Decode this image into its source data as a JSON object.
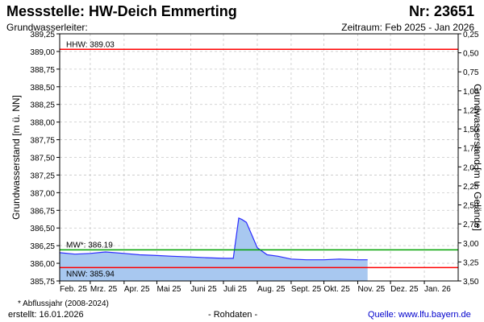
{
  "header": {
    "title": "Messstelle: HW-Deich Emmerting",
    "nr": "Nr: 23651",
    "aquifer": "Grundwasserleiter:",
    "period": "Zeitraum: Feb 2025 - Jan 2026"
  },
  "footer": {
    "footnote": "* Abflussjahr (2008-2024)",
    "created": "erstellt:  16.01.2026",
    "raw": "- Rohdaten -",
    "source": "Quelle: www.lfu.bayern.de"
  },
  "chart_data": {
    "type": "area",
    "ylabel": "Grundwasserstand [m ü. NN]",
    "ylabel_right": "Grundwasserstand [m u. Gelände]",
    "ylim": [
      385.75,
      389.25
    ],
    "ylim_right": [
      3.5,
      0.25
    ],
    "y_ticks": [
      "389,25",
      "389,00",
      "388,75",
      "388,50",
      "388,25",
      "388,00",
      "387,75",
      "387,50",
      "387,25",
      "387,00",
      "386,75",
      "386,50",
      "386,25",
      "386,00",
      "385,75"
    ],
    "y_right_ticks": [
      "0,25",
      "0,50",
      "0,75",
      "1,00",
      "1,25",
      "1,50",
      "1,75",
      "2,00",
      "2,25",
      "2,50",
      "2,75",
      "3,00",
      "3,25",
      "3,50"
    ],
    "x_ticks": [
      "Feb. 25",
      "Mrz. 25",
      "Apr. 25",
      "Mai 25",
      "Juni 25",
      "Juli 25",
      "Aug. 25",
      "Sept. 25",
      "Okt. 25",
      "Nov. 25",
      "Dez. 25",
      "Jan. 26"
    ],
    "grid": true,
    "colors": {
      "series": "#2b2bff",
      "fill": "#a8c8f0",
      "hhw": "#ff0000",
      "mw": "#00a000",
      "nnw": "#ff0000",
      "grid": "#c8c8c8"
    },
    "reference_lines": [
      {
        "label": "HHW: 389.03",
        "value": 389.03,
        "color": "#ff0000"
      },
      {
        "label": "MW*: 386.19",
        "value": 386.19,
        "color": "#00a000"
      },
      {
        "label": "NNW: 385.94",
        "value": 385.94,
        "color": "#ff0000"
      }
    ],
    "series": [
      {
        "x": [
          "2025-02-01",
          "2025-02-15",
          "2025-03-01",
          "2025-03-15",
          "2025-04-01",
          "2025-04-15",
          "2025-05-01",
          "2025-05-15",
          "2025-06-01",
          "2025-06-15",
          "2025-07-01",
          "2025-07-10",
          "2025-07-12",
          "2025-07-15",
          "2025-07-18",
          "2025-07-22",
          "2025-07-27",
          "2025-08-01",
          "2025-08-10",
          "2025-08-20",
          "2025-09-01",
          "2025-09-15",
          "2025-10-01",
          "2025-10-15",
          "2025-11-01",
          "2025-11-10"
        ],
        "y": [
          386.15,
          386.13,
          386.14,
          386.16,
          386.14,
          386.12,
          386.11,
          386.1,
          386.09,
          386.08,
          386.07,
          386.07,
          386.3,
          386.64,
          386.62,
          386.58,
          386.4,
          386.22,
          386.12,
          386.1,
          386.06,
          386.05,
          386.05,
          386.06,
          386.05,
          386.05
        ]
      }
    ]
  }
}
